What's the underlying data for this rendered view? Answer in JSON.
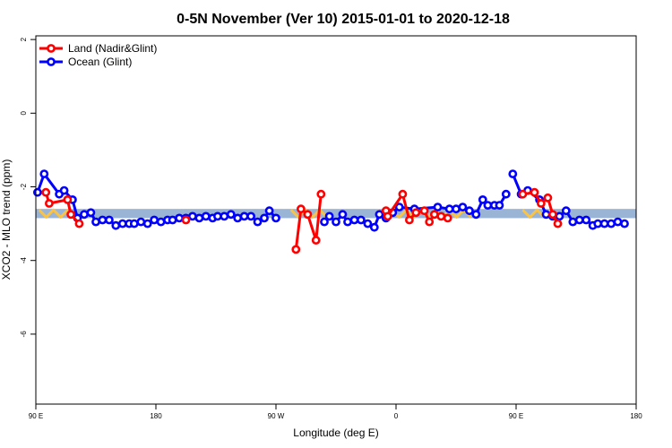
{
  "chart_data": {
    "type": "line",
    "title": "0-5N November (Ver 10)   2015-01-01 to 2020-12-18",
    "xlabel": "Longitude (deg E)",
    "ylabel": "XCO2 - MLO trend (ppm)",
    "xlim": [
      90,
      450
    ],
    "ylim": [
      -7.9,
      2.1
    ],
    "x_ticks": [
      {
        "value": 90,
        "label": "90 E"
      },
      {
        "value": 162,
        "label": "180"
      },
      {
        "value": 234,
        "label": "90 W"
      },
      {
        "value": 306,
        "label": "0"
      },
      {
        "value": 378,
        "label": "90 E"
      },
      {
        "value": 450,
        "label": "180"
      }
    ],
    "y_ticks": [
      {
        "value": 2,
        "label": "2"
      },
      {
        "value": 0,
        "label": "0"
      },
      {
        "value": -2,
        "label": "-2"
      },
      {
        "value": -4,
        "label": "-4"
      },
      {
        "value": -6,
        "label": "-6"
      }
    ],
    "band": {
      "y_low": -2.85,
      "y_high": -2.6,
      "color": "#9ab4d6"
    },
    "band_highlights": [
      {
        "x_from": 92,
        "x_to": 111
      },
      {
        "x_from": 243,
        "x_to": 265
      },
      {
        "x_from": 295,
        "x_to": 355
      },
      {
        "x_from": 382,
        "x_to": 408
      }
    ],
    "highlight_color": "#f7c34a",
    "legend": {
      "position": "top-left"
    },
    "series": [
      {
        "name": "Land (Nadir&Glint)",
        "color": "#ff0000",
        "points": [
          [
            96,
            -2.15
          ],
          [
            98,
            -2.45
          ],
          [
            109,
            -2.35
          ],
          [
            111,
            -2.75
          ],
          [
            116,
            -3.0
          ],
          [
            180,
            -2.9
          ],
          [
            246,
            -3.7
          ],
          [
            249,
            -2.6
          ],
          [
            253,
            -2.75
          ],
          [
            258,
            -3.45
          ],
          [
            261,
            -2.2
          ],
          [
            300,
            -2.65
          ],
          [
            301,
            -2.8
          ],
          [
            310,
            -2.2
          ],
          [
            314,
            -2.9
          ],
          [
            318,
            -2.7
          ],
          [
            323,
            -2.65
          ],
          [
            326,
            -2.95
          ],
          [
            329,
            -2.75
          ],
          [
            333,
            -2.8
          ],
          [
            337,
            -2.85
          ],
          [
            382,
            -2.2
          ],
          [
            389,
            -2.15
          ],
          [
            393,
            -2.45
          ],
          [
            397,
            -2.3
          ],
          [
            400,
            -2.75
          ],
          [
            403,
            -3.0
          ]
        ],
        "segments": [
          [
            0,
            5
          ],
          [
            6,
            11
          ],
          [
            11,
            21
          ],
          [
            21,
            27
          ]
        ]
      },
      {
        "name": "Ocean (Glint)",
        "color": "#0000ff",
        "points": [
          [
            91,
            -2.15
          ],
          [
            95,
            -1.65
          ],
          [
            104,
            -2.2
          ],
          [
            107,
            -2.1
          ],
          [
            112,
            -2.35
          ],
          [
            115,
            -2.85
          ],
          [
            119,
            -2.75
          ],
          [
            123,
            -2.7
          ],
          [
            126,
            -2.95
          ],
          [
            130,
            -2.9
          ],
          [
            134,
            -2.9
          ],
          [
            138,
            -3.05
          ],
          [
            142,
            -3.0
          ],
          [
            146,
            -3.0
          ],
          [
            149,
            -3.0
          ],
          [
            153,
            -2.95
          ],
          [
            157,
            -3.0
          ],
          [
            161,
            -2.9
          ],
          [
            165,
            -2.95
          ],
          [
            169,
            -2.9
          ],
          [
            172,
            -2.9
          ],
          [
            176,
            -2.85
          ],
          [
            180,
            -2.85
          ],
          [
            184,
            -2.8
          ],
          [
            188,
            -2.85
          ],
          [
            192,
            -2.8
          ],
          [
            196,
            -2.85
          ],
          [
            199,
            -2.8
          ],
          [
            203,
            -2.8
          ],
          [
            207,
            -2.75
          ],
          [
            211,
            -2.85
          ],
          [
            215,
            -2.8
          ],
          [
            219,
            -2.8
          ],
          [
            223,
            -2.95
          ],
          [
            227,
            -2.85
          ],
          [
            230,
            -2.65
          ],
          [
            234,
            -2.85
          ],
          [
            263,
            -2.95
          ],
          [
            266,
            -2.8
          ],
          [
            270,
            -2.95
          ],
          [
            274,
            -2.75
          ],
          [
            277,
            -2.95
          ],
          [
            281,
            -2.9
          ],
          [
            285,
            -2.9
          ],
          [
            289,
            -3.0
          ],
          [
            293,
            -3.1
          ],
          [
            296,
            -2.75
          ],
          [
            300,
            -2.85
          ],
          [
            304,
            -2.7
          ],
          [
            308,
            -2.55
          ],
          [
            317,
            -2.6
          ],
          [
            331,
            -2.55
          ],
          [
            338,
            -2.6
          ],
          [
            342,
            -2.6
          ],
          [
            346,
            -2.55
          ],
          [
            350,
            -2.65
          ],
          [
            354,
            -2.75
          ],
          [
            358,
            -2.35
          ],
          [
            361,
            -2.5
          ],
          [
            365,
            -2.5
          ],
          [
            368,
            -2.5
          ],
          [
            372,
            -2.2
          ],
          [
            376,
            -1.65
          ],
          [
            381,
            -2.2
          ],
          [
            385,
            -2.1
          ],
          [
            392,
            -2.35
          ],
          [
            396,
            -2.75
          ],
          [
            400,
            -2.8
          ],
          [
            404,
            -2.8
          ],
          [
            408,
            -2.65
          ],
          [
            412,
            -2.95
          ],
          [
            416,
            -2.9
          ],
          [
            420,
            -2.9
          ],
          [
            424,
            -3.05
          ],
          [
            427,
            -3.0
          ],
          [
            431,
            -3.0
          ],
          [
            435,
            -3.0
          ],
          [
            439,
            -2.95
          ],
          [
            443,
            -3.0
          ]
        ],
        "segments": [
          [
            0,
            37
          ],
          [
            37,
            62
          ],
          [
            62,
            79
          ]
        ]
      }
    ]
  }
}
